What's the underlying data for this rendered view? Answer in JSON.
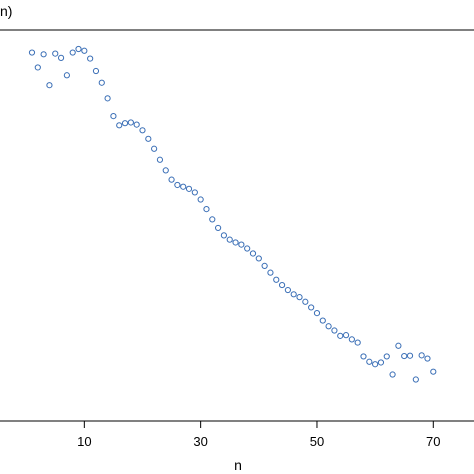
{
  "chart_data": {
    "type": "scatter",
    "title": "n)",
    "xlabel": "n",
    "ylabel": "",
    "xlim": [
      -4.5,
      77
    ],
    "ylim": [
      0,
      1
    ],
    "xticks": [
      10,
      30,
      50,
      70
    ],
    "marker_color": "#3b6fb6",
    "grid": false,
    "series": [
      {
        "x": [
          1,
          2,
          3,
          4,
          5,
          6,
          7,
          8,
          9,
          10,
          11,
          12,
          13,
          14,
          15,
          16,
          17,
          18,
          19,
          20,
          21,
          22,
          23,
          24,
          25,
          26,
          27,
          28,
          29,
          30,
          31,
          32,
          33,
          34,
          35,
          36,
          37,
          38,
          39,
          40,
          41,
          42,
          43,
          44,
          45,
          46,
          47,
          48,
          49,
          50,
          51,
          52,
          53,
          54,
          55,
          56,
          57,
          58,
          59,
          60,
          61,
          62,
          63,
          64,
          65,
          66,
          67,
          68,
          69,
          70
        ],
        "y": [
          0.99,
          0.948,
          0.985,
          0.898,
          0.987,
          0.975,
          0.926,
          0.99,
          1.0,
          0.995,
          0.973,
          0.938,
          0.905,
          0.861,
          0.811,
          0.785,
          0.791,
          0.793,
          0.787,
          0.771,
          0.747,
          0.719,
          0.688,
          0.658,
          0.632,
          0.617,
          0.612,
          0.606,
          0.596,
          0.576,
          0.549,
          0.52,
          0.496,
          0.475,
          0.463,
          0.455,
          0.449,
          0.438,
          0.424,
          0.41,
          0.389,
          0.37,
          0.35,
          0.335,
          0.321,
          0.309,
          0.301,
          0.288,
          0.272,
          0.256,
          0.235,
          0.219,
          0.207,
          0.192,
          0.194,
          0.182,
          0.173,
          0.134,
          0.119,
          0.112,
          0.117,
          0.134,
          0.083,
          0.164,
          0.135,
          0.136,
          0.069,
          0.137,
          0.128,
          0.091
        ]
      }
    ]
  }
}
